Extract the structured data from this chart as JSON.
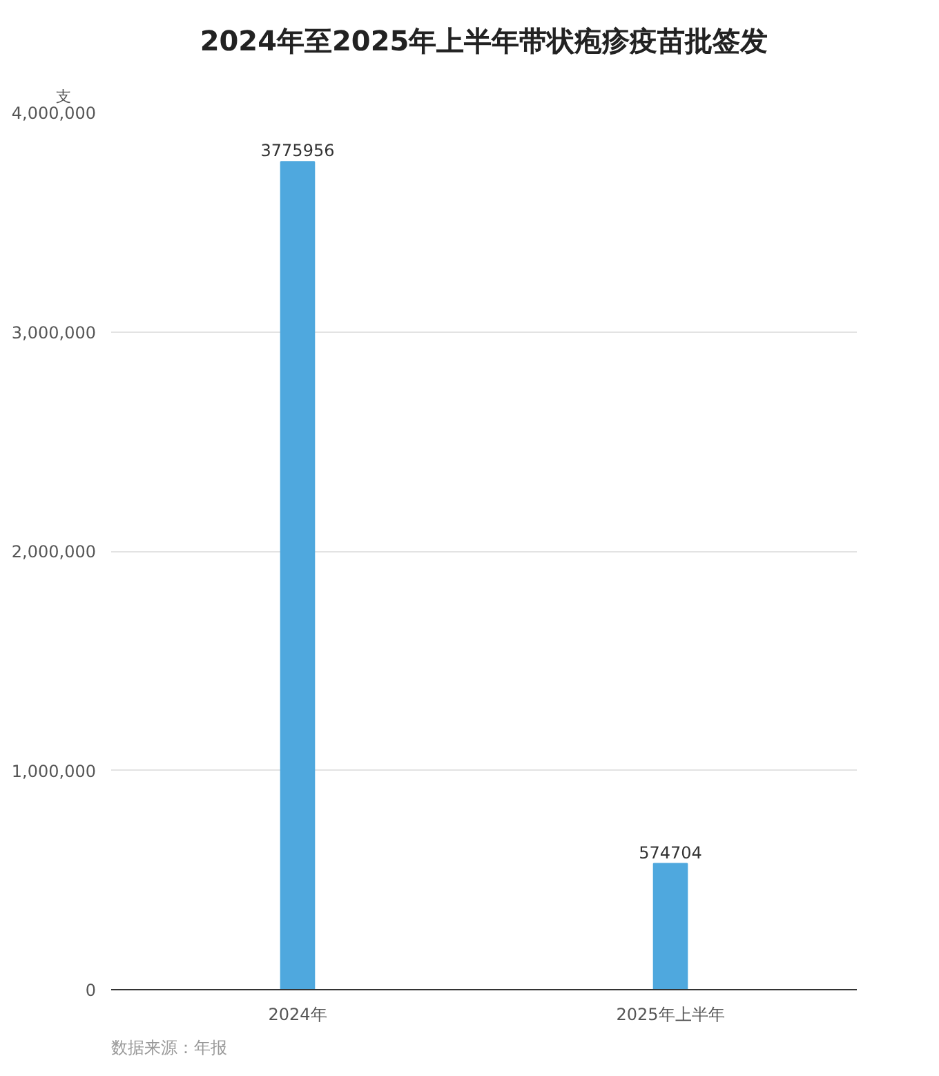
{
  "chart_data": {
    "type": "bar",
    "title": "2024年至2025年上半年带状疱疹疫苗批签发",
    "ylabel": "支",
    "categories": [
      "2024年",
      "2025年上半年"
    ],
    "values": [
      3775956,
      574704
    ],
    "color": "#4fa8de",
    "ylim": [
      0,
      4000000
    ],
    "yticks": [
      {
        "value": 0,
        "label": "0"
      },
      {
        "value": 1000000,
        "label": "1,000,000"
      },
      {
        "value": 2000000,
        "label": "2,000,000"
      },
      {
        "value": 3000000,
        "label": "3,000,000"
      },
      {
        "value": 4000000,
        "label": "4,000,000"
      }
    ],
    "grid": "y",
    "data_labels": true,
    "annotations": [
      "数据来源：年报"
    ]
  }
}
